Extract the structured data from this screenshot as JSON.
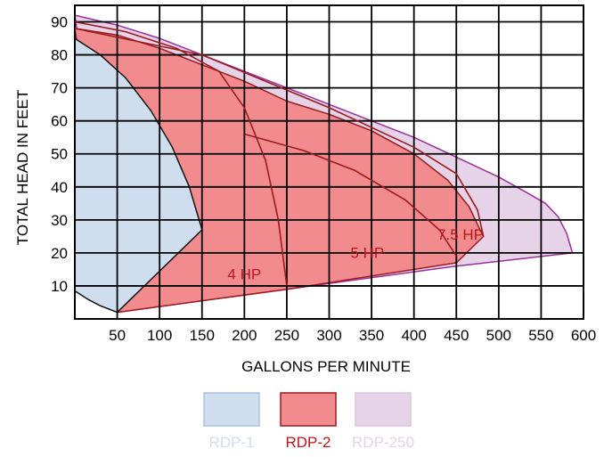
{
  "chart_data": {
    "type": "area",
    "xlabel": "GALLONS PER MINUTE",
    "ylabel": "TOTAL HEAD IN FEET",
    "xlim": [
      0,
      600
    ],
    "ylim": [
      0,
      95
    ],
    "grid": true,
    "x_ticks": [
      "50",
      "100",
      "150",
      "200",
      "250",
      "300",
      "350",
      "400",
      "450",
      "500",
      "550",
      "600"
    ],
    "y_ticks": [
      "10",
      "20",
      "30",
      "40",
      "50",
      "60",
      "70",
      "80",
      "90"
    ],
    "legend_position": "bottom",
    "series": [
      {
        "name": "RDP-250",
        "fill": "#e6d3e8",
        "stroke": "#9b2f9b",
        "points": [
          [
            0,
            92
          ],
          [
            50,
            89
          ],
          [
            100,
            85
          ],
          [
            150,
            80
          ],
          [
            200,
            75
          ],
          [
            250,
            70
          ],
          [
            300,
            65
          ],
          [
            350,
            60
          ],
          [
            400,
            55
          ],
          [
            450,
            49
          ],
          [
            500,
            43
          ],
          [
            535,
            38
          ],
          [
            555,
            35
          ],
          [
            570,
            31
          ],
          [
            580,
            26
          ],
          [
            587,
            20
          ],
          [
            450,
            16
          ],
          [
            250,
            9
          ],
          [
            50,
            2
          ]
        ]
      },
      {
        "name": "RDP-2",
        "fill": "#f28b8d",
        "stroke": "#9b1b1e",
        "points": [
          [
            0,
            88
          ],
          [
            50,
            86
          ],
          [
            100,
            82
          ],
          [
            150,
            77
          ],
          [
            200,
            72
          ],
          [
            250,
            66
          ],
          [
            300,
            62
          ],
          [
            350,
            57
          ],
          [
            400,
            50
          ],
          [
            440,
            42
          ],
          [
            465,
            34
          ],
          [
            478,
            27
          ],
          [
            482,
            25
          ],
          [
            450,
            17
          ],
          [
            250,
            9
          ],
          [
            50,
            2
          ]
        ]
      },
      {
        "name": "RDP-1",
        "fill": "#cfdeee",
        "stroke": "#111111",
        "points": [
          [
            0,
            85
          ],
          [
            30,
            80
          ],
          [
            60,
            73
          ],
          [
            90,
            63
          ],
          [
            115,
            52
          ],
          [
            135,
            40
          ],
          [
            150,
            27
          ],
          [
            50,
            2
          ],
          [
            30,
            4
          ],
          [
            15,
            6
          ],
          [
            0,
            8.5
          ]
        ]
      }
    ],
    "hp_curves": [
      {
        "label": "4 HP",
        "points": [
          [
            0,
            90
          ],
          [
            60,
            87
          ],
          [
            120,
            82
          ],
          [
            170,
            75
          ],
          [
            200,
            64
          ],
          [
            225,
            48
          ],
          [
            240,
            30
          ],
          [
            250,
            10
          ]
        ]
      },
      {
        "label": "5 HP",
        "points": [
          [
            200,
            56
          ],
          [
            270,
            51
          ],
          [
            330,
            45
          ],
          [
            390,
            36
          ],
          [
            430,
            27
          ],
          [
            450,
            19
          ]
        ]
      },
      {
        "label": "7.5 HP",
        "points": [
          [
            0,
            88
          ],
          [
            150,
            80
          ],
          [
            300,
            64
          ],
          [
            400,
            52
          ],
          [
            450,
            44
          ],
          [
            475,
            33
          ],
          [
            482,
            25
          ]
        ]
      }
    ],
    "hp_label_positions": [
      [
        200,
        12
      ],
      [
        345,
        18.5
      ],
      [
        455,
        24
      ]
    ]
  },
  "legend": [
    {
      "name": "RDP-1",
      "swatch_fill": "#cfdeee",
      "swatch_stroke": "#a9c3df",
      "text_color": "#cfdeee"
    },
    {
      "name": "RDP-2",
      "swatch_fill": "#f28b8d",
      "swatch_stroke": "#9b1b1e",
      "text_color": "#b5171c"
    },
    {
      "name": "RDP-250",
      "swatch_fill": "#e6d3e8",
      "swatch_stroke": "#dec4e0",
      "text_color": "#e6d3e8"
    }
  ]
}
